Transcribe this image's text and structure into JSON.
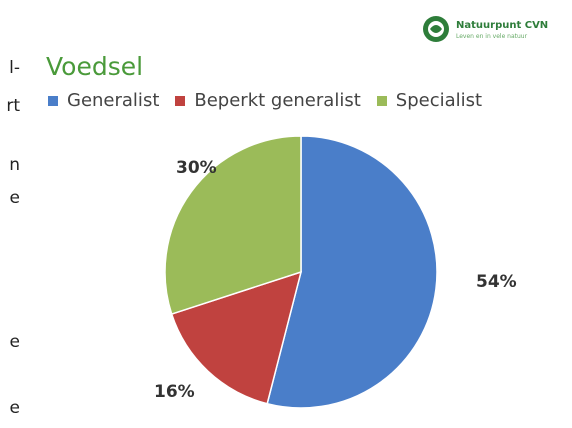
{
  "left_fragments": [
    "l-",
    "rt",
    "n",
    "e",
    "e",
    "e"
  ],
  "logo": {
    "title": "Natuurpunt CVN",
    "subtitle": "Leven en in vele natuur",
    "icon": "natuurpunt-logo-icon",
    "color": "#2e7d3a"
  },
  "chart_data": {
    "type": "pie",
    "title": "Voedsel",
    "legend_position": "top",
    "categories": [
      "Generalist",
      "Beperkt generalist",
      "Specialist"
    ],
    "values": [
      54,
      16,
      30
    ],
    "labels": [
      "54%",
      "16%",
      "30%"
    ],
    "colors": [
      "#4a7ec9",
      "#c0423f",
      "#9bbb59"
    ]
  }
}
